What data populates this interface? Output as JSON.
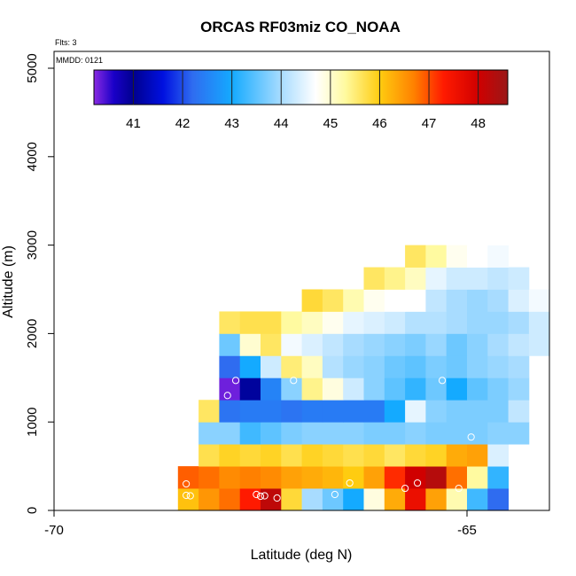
{
  "chart_data": {
    "type": "heatmap",
    "title": "ORCAS RF03miz CO_NOAA",
    "flts_label": "Flts: 3",
    "mmdd_label": "MMDD: 0121",
    "xlabel": "Latitude (deg N)",
    "ylabel": "Altitude (m)",
    "xlim": [
      -70,
      -64.0
    ],
    "ylim": [
      0,
      5200
    ],
    "x_ticks": [
      -70,
      -65
    ],
    "x_tick_labels": [
      "-70",
      "-65"
    ],
    "y_ticks": [
      0,
      1000,
      2000,
      3000,
      4000,
      5000
    ],
    "y_tick_labels": [
      "0",
      "1000",
      "2000",
      "3000",
      "4000",
      "5000"
    ],
    "bin_width_lat": 0.25,
    "bin_height_m": 250,
    "color_scale": {
      "min": 40.2,
      "max": 48.6,
      "ticks": [
        41,
        42,
        43,
        44,
        45,
        46,
        47,
        48
      ],
      "tick_labels": [
        "41",
        "42",
        "43",
        "44",
        "45",
        "46",
        "47",
        "48"
      ],
      "stops": [
        [
          40.2,
          "#8a2be2"
        ],
        [
          40.6,
          "#1a00c8"
        ],
        [
          41.0,
          "#00008f"
        ],
        [
          41.6,
          "#0010e0"
        ],
        [
          42.2,
          "#2f6cf0"
        ],
        [
          43.0,
          "#14aaff"
        ],
        [
          44.0,
          "#a8dcff"
        ],
        [
          44.7,
          "#ffffff"
        ],
        [
          45.3,
          "#fffaa0"
        ],
        [
          46.0,
          "#ffcc10"
        ],
        [
          46.7,
          "#ff8000"
        ],
        [
          47.3,
          "#ff1a00"
        ],
        [
          48.0,
          "#d00000"
        ],
        [
          48.6,
          "#9a1818"
        ]
      ]
    },
    "rows": [
      {
        "alt0": 0,
        "lat0": -68.5,
        "values": [
          46.1,
          46.5,
          46.8,
          47.3,
          48.2,
          45.8,
          44.0,
          43.6,
          43.0,
          44.9,
          46.3,
          47.6,
          46.4,
          45.2,
          43.3,
          42.2
        ]
      },
      {
        "alt0": 250,
        "lat0": -68.5,
        "values": [
          46.9,
          46.8,
          46.6,
          46.7,
          46.6,
          46.4,
          46.3,
          46.2,
          46.0,
          46.4,
          47.2,
          48.0,
          48.3,
          46.8,
          45.3,
          43.2
        ]
      },
      {
        "alt0": 500,
        "lat0": -68.25,
        "values": [
          45.7,
          45.9,
          45.8,
          45.9,
          45.7,
          45.9,
          45.8,
          45.7,
          45.8,
          45.6,
          45.8,
          45.9,
          46.3,
          46.4,
          44.4
        ]
      },
      {
        "alt0": 750,
        "lat0": -68.25,
        "values": [
          43.8,
          43.8,
          43.3,
          43.5,
          43.7,
          43.8,
          43.8,
          43.8,
          43.7,
          43.7,
          43.8,
          43.7,
          43.7,
          43.7,
          43.8,
          43.8
        ]
      },
      {
        "alt0": 1000,
        "lat0": -68.25,
        "values": [
          45.6,
          42.3,
          42.4,
          42.4,
          42.3,
          42.4,
          42.4,
          42.4,
          42.4,
          43.0,
          44.5,
          43.8,
          43.7,
          43.7,
          43.7,
          44.2
        ]
      },
      {
        "alt0": 1250,
        "lat0": -68.0,
        "values": [
          40.3,
          41.1,
          42.5,
          43.8,
          45.4,
          44.9,
          44.3,
          43.8,
          43.5,
          43.2,
          43.6,
          43.0,
          43.5,
          43.7,
          43.9
        ]
      },
      {
        "alt0": 1500,
        "lat0": -68.0,
        "values": [
          42.2,
          43.0,
          44.3,
          45.5,
          45.1,
          44.1,
          43.9,
          43.8,
          43.6,
          43.5,
          43.7,
          43.6,
          43.8,
          43.9,
          44.0
        ]
      },
      {
        "alt0": 1750,
        "lat0": -68.0,
        "values": [
          43.6,
          45.0,
          45.6,
          44.6,
          44.4,
          44.2,
          44.0,
          43.9,
          43.8,
          43.7,
          43.9,
          43.6,
          43.8,
          44.0,
          44.2,
          44.3
        ]
      },
      {
        "alt0": 2000,
        "lat0": -68.0,
        "values": [
          45.6,
          45.7,
          45.7,
          45.3,
          45.1,
          44.8,
          44.5,
          44.4,
          44.3,
          44.1,
          44.1,
          44.0,
          43.9,
          43.9,
          44.0,
          44.3
        ]
      },
      {
        "alt0": 2250,
        "lat0": -67.0,
        "values": [
          45.8,
          45.6,
          45.2,
          44.8,
          44.7,
          44.7,
          44.2,
          44.0,
          43.9,
          44.0,
          44.4,
          44.6
        ]
      },
      {
        "alt0": 2500,
        "lat0": -66.25,
        "values": [
          45.6,
          45.4,
          45.1,
          44.5,
          44.3,
          44.3,
          44.2,
          44.3
        ]
      },
      {
        "alt0": 2750,
        "lat0": -65.75,
        "values": [
          45.6,
          45.3,
          44.8,
          44.7,
          44.6
        ]
      },
      {
        "alt0": 3000,
        "lat0": -64.75,
        "values": [
          44.7
        ]
      }
    ],
    "markers": [
      [
        -68.4,
        300
      ],
      [
        -68.4,
        170
      ],
      [
        -68.35,
        165
      ],
      [
        -67.9,
        1300
      ],
      [
        -67.8,
        1470
      ],
      [
        -67.55,
        180
      ],
      [
        -67.5,
        160
      ],
      [
        -67.45,
        165
      ],
      [
        -67.3,
        140
      ],
      [
        -67.1,
        1470
      ],
      [
        -66.6,
        180
      ],
      [
        -66.42,
        310
      ],
      [
        -65.75,
        250
      ],
      [
        -65.6,
        310
      ],
      [
        -65.3,
        1470
      ],
      [
        -65.1,
        250
      ],
      [
        -64.95,
        830
      ]
    ]
  }
}
